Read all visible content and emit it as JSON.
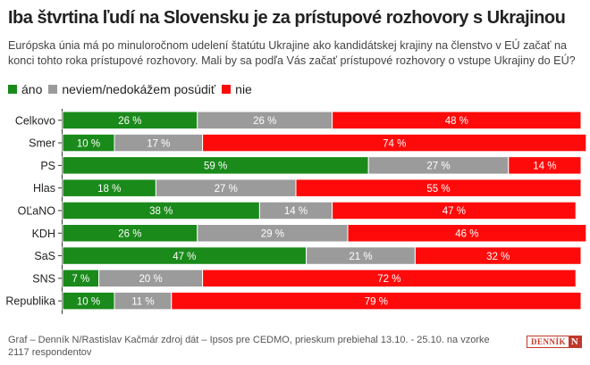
{
  "title": "Iba štvrtina ľudí na Slovensku je za prístupové rozhovory s Ukrajinou",
  "subtitle": "Európska únia má po minuloročnom udelení štatútu Ukrajine ako kandidátskej krajiny na členstvo v EÚ začať na konci tohto roka prístupové rozhovory. Mali by sa podľa Vás začať prístupové rozhovory o vstupe Ukrajiny do EÚ?",
  "legend": [
    {
      "label": "áno",
      "color": "#1a8a1a"
    },
    {
      "label": "neviem/nedokážem posúdiť",
      "color": "#9b9b9b"
    },
    {
      "label": "nie",
      "color": "#ff0a0a"
    }
  ],
  "footer": "Graf – Denník N/Rastislav Kačmár zdroj dát – Ipsos pre CEDMO, prieskum prebiehal 13.10. - 25.10. na vzorke 2117 respondentov",
  "logo": {
    "text": "DENNÍK",
    "mark": "N"
  },
  "chart_data": {
    "type": "bar",
    "orientation": "horizontal",
    "stacked": true,
    "value_suffix": " %",
    "categories": [
      "Celkovo",
      "Smer",
      "PS",
      "Hlas",
      "OĽaNO",
      "KDH",
      "SaS",
      "SNS",
      "Republika"
    ],
    "series": [
      {
        "name": "áno",
        "color": "#1a8a1a",
        "values": [
          26,
          10,
          59,
          18,
          38,
          26,
          47,
          7,
          10
        ]
      },
      {
        "name": "neviem/nedokážem posúdiť",
        "color": "#9b9b9b",
        "values": [
          26,
          17,
          27,
          27,
          14,
          29,
          21,
          20,
          11
        ]
      },
      {
        "name": "nie",
        "color": "#ff0a0a",
        "values": [
          48,
          74,
          14,
          55,
          47,
          46,
          32,
          72,
          79
        ]
      }
    ],
    "xlim": [
      0,
      100
    ],
    "grid": false,
    "legend_position": "top-left"
  }
}
